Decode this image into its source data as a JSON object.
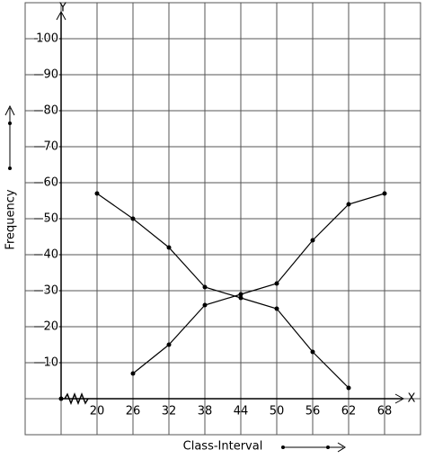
{
  "chart_data": {
    "type": "line",
    "x_axis_letter": "X",
    "y_axis_letter": "Y",
    "xlabel": "Class-Interval",
    "ylabel": "Frequency",
    "x": [
      20,
      26,
      32,
      38,
      44,
      50,
      56,
      62,
      68
    ],
    "series": [
      {
        "color": "#000000",
        "values": [
          57,
          50,
          42,
          31,
          28,
          25,
          13,
          3,
          null
        ]
      },
      {
        "color": "#000000",
        "values": [
          null,
          7,
          15,
          26,
          29,
          32,
          44,
          54,
          57
        ]
      }
    ],
    "xlim": [
      8,
      74
    ],
    "ylim": [
      -10,
      110
    ],
    "xticks": [
      20,
      26,
      32,
      38,
      44,
      50,
      56,
      62,
      68
    ],
    "yticks": [
      10,
      20,
      30,
      40,
      50,
      60,
      70,
      80,
      90,
      100
    ],
    "grid": true
  }
}
